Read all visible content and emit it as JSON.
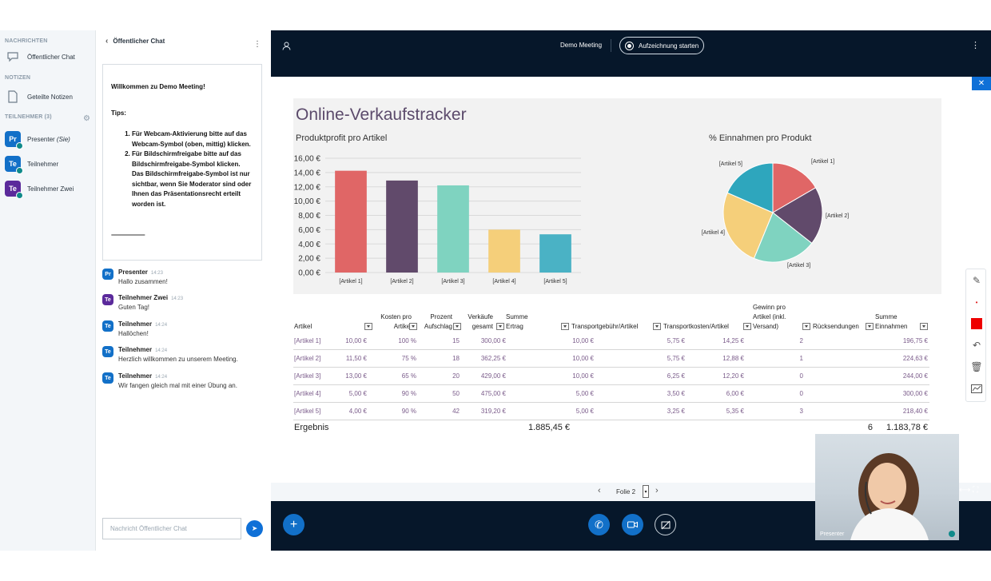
{
  "sidebar": {
    "messages_header": "NACHRICHTEN",
    "public_chat": "Öffentlicher Chat",
    "notes_header": "NOTIZEN",
    "shared_notes": "Geteilte Notizen",
    "participants_header": "TEILNEHMER (3)",
    "users": [
      {
        "initials": "Pr",
        "name": "Presenter",
        "suffix": "(Sie)",
        "color": "#1270c8"
      },
      {
        "initials": "Te",
        "name": "Teilnehmer",
        "suffix": "",
        "color": "#1270c8"
      },
      {
        "initials": "Te",
        "name": "Teilnehmer Zwei",
        "suffix": "",
        "color": "#5b2a9b"
      }
    ]
  },
  "chat": {
    "title": "Öffentlicher Chat",
    "welcome_line": "Willkommen zu ",
    "welcome_meeting": "Demo Meeting!",
    "tips": "Tips:",
    "tip1_a": "Für ",
    "tip1_b": "Webcam-Aktivierung",
    "tip1_c": " bitte auf das Webcam-Symbol (oben, mittig) klicken.",
    "tip2_a": "Für ",
    "tip2_b": "Bildschirmfreigabe",
    "tip2_c": " bitte auf das Bildschirmfreigabe-Symbol klicken. Das Bildschirmfreigabe-Symbol ist nur sichtbar, wenn Sie Moderator sind oder Ihnen das Präsentationsrecht erteilt worden ist.",
    "divider": "-------------------------",
    "messages": [
      {
        "initials": "Pr",
        "color": "#1270c8",
        "name": "Presenter",
        "time": "14:23",
        "text": "Hallo zusammen!"
      },
      {
        "initials": "Te",
        "color": "#5b2a9b",
        "name": "Teilnehmer Zwei",
        "time": "14:23",
        "text": "Guten Tag!"
      },
      {
        "initials": "Te",
        "color": "#1270c8",
        "name": "Teilnehmer",
        "time": "14:24",
        "text": "Hallöchen!"
      },
      {
        "initials": "Te",
        "color": "#1270c8",
        "name": "Teilnehmer",
        "time": "14:24",
        "text": "Herzlich willkommen zu unserem Meeting."
      },
      {
        "initials": "Te",
        "color": "#1270c8",
        "name": "Teilnehmer",
        "time": "14:24",
        "text": "Wir fangen gleich mal mit einer Übung an."
      }
    ],
    "input_placeholder": "Nachricht Öffentlicher Chat"
  },
  "topbar": {
    "meeting_title": "Demo Meeting",
    "record_label": "Aufzeichnung starten"
  },
  "slide": {
    "title": "Online-Verkaufstracker",
    "bar_title": "Produktprofit pro Artikel",
    "pie_title": "% Einnahmen pro Produkt",
    "nav_label": "Folie 2"
  },
  "chart_data": [
    {
      "type": "bar",
      "title": "Produktprofit pro Artikel",
      "categories": [
        "[Artikel 1]",
        "[Artikel 2]",
        "[Artikel 3]",
        "[Artikel 4]",
        "[Artikel 5]"
      ],
      "values": [
        14.25,
        12.88,
        12.2,
        6.0,
        5.35
      ],
      "colors": [
        "#e06666",
        "#614a6b",
        "#7fd3c0",
        "#f5cf7a",
        "#4ab2c5"
      ],
      "yticks": [
        "0,00 €",
        "2,00 €",
        "4,00 €",
        "6,00 €",
        "8,00 €",
        "10,00 €",
        "12,00 €",
        "14,00 €",
        "16,00 €"
      ],
      "ylim": [
        0,
        16
      ],
      "grid": true
    },
    {
      "type": "pie",
      "title": "% Einnahmen pro Produkt",
      "categories": [
        "[Artikel 1]",
        "[Artikel 2]",
        "[Artikel 3]",
        "[Artikel 4]",
        "[Artikel 5]"
      ],
      "values": [
        196.75,
        224.63,
        244.0,
        300.0,
        218.4
      ],
      "colors": [
        "#e06666",
        "#614a6b",
        "#7fd3c0",
        "#f5cf7a",
        "#2ea6bd"
      ]
    }
  ],
  "table": {
    "headers": [
      "Artikel",
      "Kosten pro Artikel",
      "Prozent Aufschlag",
      "Verkäufe gesamt",
      "Summe Ertrag",
      "Transportgebühr/Artikel",
      "Transportkosten/Artikel",
      "Gewinn pro Artikel (inkl. Versand)",
      "Rücksendungen",
      "Summe Einnahmen"
    ],
    "rows": [
      [
        "[Artikel 1]",
        "10,00 €",
        "100 %",
        "15",
        "300,00 €",
        "10,00 €",
        "5,75 €",
        "14,25 €",
        "2",
        "196,75 €"
      ],
      [
        "[Artikel 2]",
        "11,50 €",
        "75 %",
        "18",
        "362,25 €",
        "10,00 €",
        "5,75 €",
        "12,88 €",
        "1",
        "224,63 €"
      ],
      [
        "[Artikel 3]",
        "13,00 €",
        "65 %",
        "20",
        "429,00 €",
        "10,00 €",
        "6,25 €",
        "12,20 €",
        "0",
        "244,00 €"
      ],
      [
        "[Artikel 4]",
        "5,00 €",
        "90 %",
        "50",
        "475,00 €",
        "5,00 €",
        "3,50 €",
        "6,00 €",
        "0",
        "300,00 €"
      ],
      [
        "[Artikel 5]",
        "4,00 €",
        "90 %",
        "42",
        "319,20 €",
        "5,00 €",
        "3,25 €",
        "5,35 €",
        "3",
        "218,40 €"
      ]
    ],
    "total_label": "Ergebnis",
    "total_ertrag": "1.885,45 €",
    "total_returns": "6",
    "total_income": "1.183,78 €"
  },
  "video": {
    "label": "Presenter"
  }
}
